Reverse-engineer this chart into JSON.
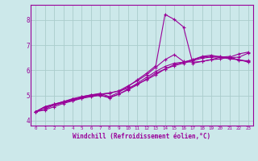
{
  "title": "",
  "xlabel": "Windchill (Refroidissement éolien,°C)",
  "background_color": "#cce8ea",
  "grid_color": "#aacccc",
  "line_color": "#990099",
  "xlim": [
    -0.5,
    23.5
  ],
  "ylim": [
    3.8,
    8.6
  ],
  "xticks": [
    0,
    1,
    2,
    3,
    4,
    5,
    6,
    7,
    8,
    9,
    10,
    11,
    12,
    13,
    14,
    15,
    16,
    17,
    18,
    19,
    20,
    21,
    22,
    23
  ],
  "yticks": [
    4,
    5,
    6,
    7,
    8
  ],
  "series": [
    [
      4.35,
      4.55,
      4.65,
      4.75,
      4.85,
      4.92,
      4.98,
      5.05,
      5.1,
      5.18,
      5.28,
      5.45,
      5.62,
      5.82,
      6.05,
      6.22,
      6.32,
      6.42,
      6.55,
      6.6,
      6.52,
      6.5,
      6.52,
      6.68
    ],
    [
      4.35,
      4.55,
      4.65,
      4.75,
      4.87,
      4.95,
      5.02,
      5.08,
      4.95,
      5.12,
      5.35,
      5.62,
      5.88,
      6.18,
      8.22,
      8.02,
      7.72,
      6.28,
      6.35,
      6.42,
      6.52,
      6.55,
      6.38,
      6.38
    ],
    [
      4.35,
      4.45,
      4.62,
      4.72,
      4.8,
      4.9,
      4.98,
      5.02,
      4.92,
      5.05,
      5.25,
      5.48,
      5.72,
      5.95,
      6.15,
      6.28,
      6.32,
      6.42,
      6.52,
      6.55,
      6.55,
      6.48,
      6.42,
      6.35
    ],
    [
      4.35,
      4.52,
      4.62,
      4.72,
      4.82,
      4.95,
      5.02,
      5.05,
      5.08,
      5.18,
      5.38,
      5.58,
      5.82,
      6.12,
      6.42,
      6.62,
      6.35,
      6.32,
      6.35,
      6.42,
      6.45,
      6.52,
      6.65,
      6.72
    ],
    [
      4.35,
      4.42,
      4.55,
      4.68,
      4.78,
      4.88,
      4.95,
      5.0,
      4.9,
      5.05,
      5.22,
      5.42,
      5.65,
      5.88,
      6.05,
      6.18,
      6.28,
      6.38,
      6.48,
      6.52,
      6.52,
      6.45,
      6.42,
      6.32
    ]
  ]
}
